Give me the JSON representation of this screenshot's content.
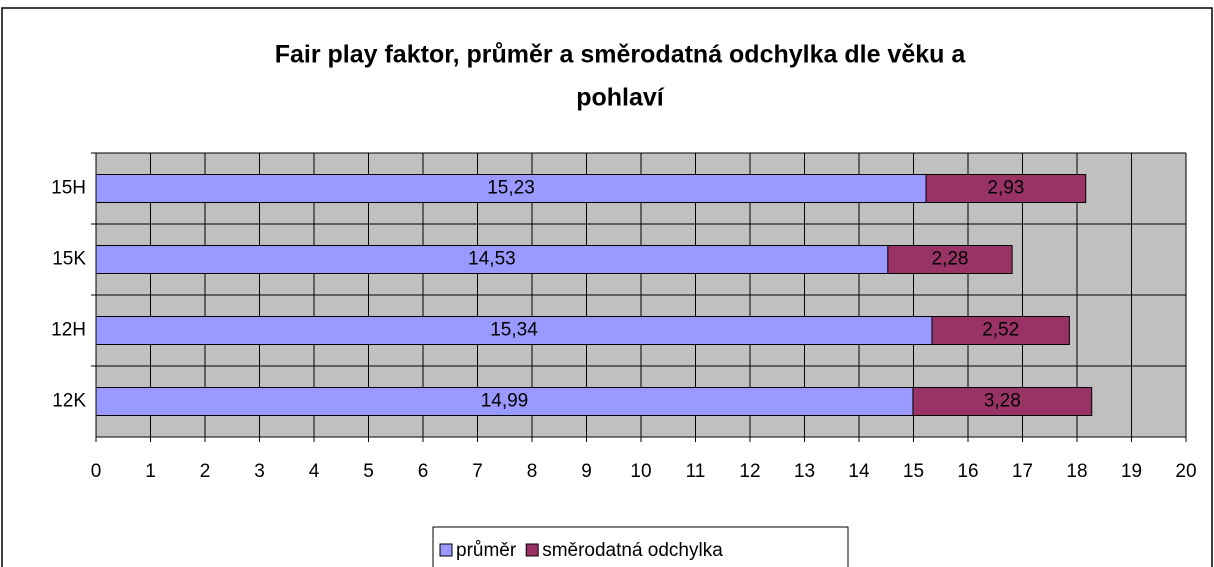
{
  "chart_data": {
    "type": "bar",
    "orientation": "horizontal",
    "stacked": true,
    "title_lines": [
      "Fair play faktor, průměr a směrodatná odchylka dle věku a",
      "pohlaví"
    ],
    "categories": [
      "15H",
      "15K",
      "12H",
      "12K"
    ],
    "series": [
      {
        "name": "průměr",
        "color": "#9999ff",
        "values": [
          15.23,
          14.53,
          15.34,
          14.99
        ],
        "value_labels": [
          "15,23",
          "14,53",
          "15,34",
          "14,99"
        ]
      },
      {
        "name": "směrodatná odchylka",
        "color": "#993366",
        "values": [
          2.93,
          2.28,
          2.52,
          3.28
        ],
        "value_labels": [
          "2,93",
          "2,28",
          "2,52",
          "3,28"
        ]
      }
    ],
    "xlim": [
      0,
      20
    ],
    "xticks": [
      0,
      1,
      2,
      3,
      4,
      5,
      6,
      7,
      8,
      9,
      10,
      11,
      12,
      13,
      14,
      15,
      16,
      17,
      18,
      19,
      20
    ],
    "grid": true,
    "plot_background": "#c0c0c0",
    "legend": "bottom"
  }
}
